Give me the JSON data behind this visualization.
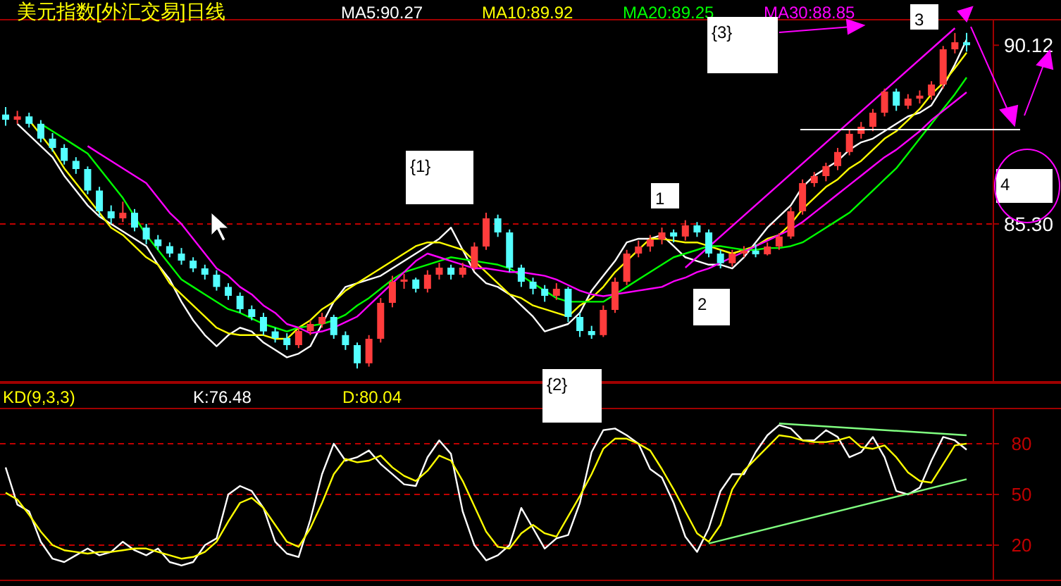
{
  "chart_data": [
    {
      "type": "candlestick",
      "title": "美元指数[外汇交易]日线",
      "tick_labels": "y",
      "ylim": [
        81.08,
        90.77
      ],
      "yticks": [
        {
          "value": 85.3,
          "label": "85.30"
        },
        {
          "value": 90.12,
          "label": "90.12"
        }
      ],
      "categories": [
        null,
        null,
        null,
        null,
        null,
        null,
        null,
        null,
        null,
        null,
        null,
        null,
        null,
        null,
        null,
        null,
        null,
        null,
        null,
        null,
        null,
        null,
        null,
        null,
        null,
        null,
        null,
        null,
        null,
        null,
        null,
        null,
        null,
        null,
        null,
        null,
        null,
        null,
        null,
        null,
        null,
        null,
        null,
        null,
        null,
        null,
        null,
        null,
        null,
        null,
        null,
        null,
        null,
        null,
        null,
        null,
        null,
        null,
        null,
        null,
        null,
        null,
        null,
        null,
        null,
        null,
        null,
        null,
        null,
        null,
        null,
        null,
        null,
        null,
        null,
        null,
        null,
        null,
        null,
        null,
        null,
        null,
        null
      ],
      "ohlc": [
        [
          88.25,
          88.45,
          87.95,
          88.11
        ],
        [
          88.11,
          88.35,
          88.0,
          88.2
        ],
        [
          88.2,
          88.3,
          87.9,
          88.0
        ],
        [
          88.0,
          88.1,
          87.5,
          87.6
        ],
        [
          87.6,
          87.75,
          87.25,
          87.35
        ],
        [
          87.35,
          87.45,
          86.9,
          87.0
        ],
        [
          87.0,
          87.1,
          86.65,
          86.78
        ],
        [
          86.78,
          86.85,
          86.1,
          86.2
        ],
        [
          86.2,
          86.3,
          85.5,
          85.64
        ],
        [
          85.64,
          85.8,
          85.3,
          85.45
        ],
        [
          85.45,
          85.9,
          85.35,
          85.6
        ],
        [
          85.6,
          85.7,
          85.1,
          85.2
        ],
        [
          85.2,
          85.3,
          84.75,
          84.88
        ],
        [
          84.88,
          85.0,
          84.6,
          84.7
        ],
        [
          84.7,
          84.8,
          84.4,
          84.5
        ],
        [
          84.5,
          84.65,
          84.2,
          84.31
        ],
        [
          84.31,
          84.4,
          84.0,
          84.1
        ],
        [
          84.1,
          84.2,
          83.8,
          83.93
        ],
        [
          83.93,
          84.05,
          83.5,
          83.6
        ],
        [
          83.6,
          83.7,
          83.25,
          83.36
        ],
        [
          83.36,
          83.45,
          82.9,
          83.0
        ],
        [
          83.0,
          83.1,
          82.7,
          82.79
        ],
        [
          82.79,
          82.9,
          82.3,
          82.4
        ],
        [
          82.4,
          82.5,
          82.1,
          82.22
        ],
        [
          82.22,
          82.35,
          81.9,
          82.03
        ],
        [
          82.03,
          82.5,
          81.95,
          82.41
        ],
        [
          82.41,
          82.7,
          82.3,
          82.6
        ],
        [
          82.6,
          82.9,
          82.5,
          82.79
        ],
        [
          82.79,
          82.85,
          82.2,
          82.3
        ],
        [
          82.3,
          82.4,
          81.9,
          82.03
        ],
        [
          82.03,
          82.1,
          81.4,
          81.54
        ],
        [
          81.54,
          82.3,
          81.45,
          82.2
        ],
        [
          82.2,
          83.3,
          82.1,
          83.17
        ],
        [
          83.17,
          83.9,
          83.05,
          83.74
        ],
        [
          83.74,
          83.95,
          83.55,
          83.8
        ],
        [
          83.8,
          83.85,
          83.45,
          83.55
        ],
        [
          83.55,
          84.05,
          83.45,
          83.93
        ],
        [
          83.93,
          84.25,
          83.8,
          84.12
        ],
        [
          84.12,
          84.2,
          83.8,
          83.93
        ],
        [
          83.93,
          84.25,
          83.85,
          84.12
        ],
        [
          84.12,
          84.8,
          84.05,
          84.69
        ],
        [
          84.69,
          85.6,
          84.6,
          85.45
        ],
        [
          85.45,
          85.55,
          84.95,
          85.07
        ],
        [
          85.07,
          85.15,
          84.0,
          84.12
        ],
        [
          84.12,
          84.2,
          83.6,
          83.74
        ],
        [
          83.74,
          83.85,
          83.4,
          83.55
        ],
        [
          83.55,
          83.65,
          83.2,
          83.36
        ],
        [
          83.36,
          83.7,
          83.25,
          83.55
        ],
        [
          83.55,
          83.6,
          82.65,
          82.79
        ],
        [
          82.79,
          82.9,
          82.25,
          82.41
        ],
        [
          82.41,
          82.55,
          82.2,
          82.3
        ],
        [
          82.3,
          83.1,
          82.25,
          82.98
        ],
        [
          82.98,
          83.85,
          82.9,
          83.74
        ],
        [
          83.74,
          84.6,
          83.65,
          84.5
        ],
        [
          84.5,
          84.85,
          84.4,
          84.69
        ],
        [
          84.69,
          85.0,
          84.55,
          84.88
        ],
        [
          84.88,
          85.2,
          84.75,
          85.07
        ],
        [
          85.07,
          85.15,
          84.8,
          84.96
        ],
        [
          84.96,
          85.4,
          84.85,
          85.26
        ],
        [
          85.26,
          85.35,
          84.95,
          85.07
        ],
        [
          85.07,
          85.15,
          84.4,
          84.5
        ],
        [
          84.5,
          84.6,
          84.1,
          84.24
        ],
        [
          84.24,
          84.6,
          84.15,
          84.5
        ],
        [
          84.5,
          84.7,
          84.4,
          84.58
        ],
        [
          84.58,
          84.75,
          84.4,
          84.48
        ],
        [
          84.48,
          84.8,
          84.45,
          84.69
        ],
        [
          84.69,
          85.05,
          84.6,
          84.96
        ],
        [
          84.96,
          85.75,
          84.9,
          85.64
        ],
        [
          85.64,
          86.5,
          85.55,
          86.4
        ],
        [
          86.4,
          86.7,
          86.3,
          86.59
        ],
        [
          86.59,
          86.95,
          86.45,
          86.86
        ],
        [
          86.86,
          87.35,
          86.75,
          87.24
        ],
        [
          87.24,
          87.85,
          87.15,
          87.73
        ],
        [
          87.73,
          88.05,
          87.6,
          87.92
        ],
        [
          87.92,
          88.4,
          87.8,
          88.3
        ],
        [
          88.3,
          88.95,
          88.2,
          88.87
        ],
        [
          88.87,
          88.95,
          88.35,
          88.49
        ],
        [
          88.49,
          88.8,
          88.4,
          88.68
        ],
        [
          88.68,
          88.9,
          88.55,
          88.76
        ],
        [
          88.76,
          89.15,
          88.65,
          89.06
        ],
        [
          89.06,
          90.1,
          88.95,
          90.01
        ],
        [
          90.01,
          90.45,
          89.9,
          90.2
        ],
        [
          90.2,
          90.45,
          89.95,
          90.12
        ]
      ],
      "series": [
        {
          "type": "line",
          "name": "MA5:90.27",
          "color": "#ffffff",
          "values": [
            null,
            88.0,
            87.7,
            87.4,
            87.1,
            86.6,
            86.2,
            85.8,
            85.5,
            85.3,
            85.1,
            84.9,
            84.7,
            84.2,
            83.8,
            83.2,
            82.7,
            82.3,
            82.0,
            82.3,
            82.5,
            82.4,
            82.1,
            81.9,
            81.7,
            81.8,
            82.0,
            82.6,
            83.2,
            83.6,
            83.7,
            83.8,
            83.9,
            84.1,
            84.3,
            84.5,
            84.7,
            84.9,
            85.2,
            84.6,
            84.0,
            83.7,
            83.6,
            83.4,
            83.1,
            82.8,
            82.4,
            82.5,
            82.6,
            82.9,
            83.5,
            83.9,
            84.3,
            84.8,
            84.9,
            84.9,
            85.0,
            84.7,
            84.4,
            84.3,
            84.2,
            84.2,
            84.1,
            84.4,
            84.8,
            85.2,
            85.5,
            85.8,
            86.3,
            86.6,
            86.8,
            87.0,
            87.3,
            87.5,
            87.6,
            87.8,
            88.0,
            88.2,
            88.3,
            88.5,
            89.0,
            89.6,
            90.27
          ]
        },
        {
          "type": "line",
          "name": "MA10:89.92",
          "color": "#ffff00",
          "values": [
            null,
            null,
            88.1,
            87.7,
            87.3,
            86.8,
            86.4,
            86.0,
            85.6,
            85.2,
            85.0,
            84.7,
            84.4,
            84.2,
            83.7,
            83.4,
            83.1,
            82.8,
            82.5,
            82.35,
            82.3,
            82.3,
            82.3,
            82.2,
            82.2,
            82.5,
            82.7,
            83.0,
            83.2,
            83.5,
            83.7,
            83.9,
            84.1,
            84.3,
            84.5,
            84.7,
            84.8,
            84.8,
            84.7,
            84.6,
            84.3,
            84.0,
            83.7,
            83.4,
            83.3,
            83.1,
            83.0,
            82.9,
            82.8,
            83.1,
            83.3,
            83.6,
            84.0,
            84.3,
            84.6,
            84.9,
            84.9,
            84.85,
            84.8,
            84.8,
            84.7,
            84.6,
            84.5,
            84.6,
            84.7,
            84.9,
            85.0,
            85.3,
            85.7,
            86.0,
            86.3,
            86.5,
            86.8,
            87.0,
            87.3,
            87.6,
            87.8,
            88.1,
            88.4,
            88.8,
            89.1,
            89.5,
            89.92
          ]
        },
        {
          "type": "line",
          "name": "MA20:89.25",
          "color": "#00ff00",
          "values": [
            null,
            null,
            null,
            88.0,
            87.8,
            87.6,
            87.4,
            87.2,
            86.8,
            86.4,
            86.0,
            85.5,
            85.0,
            84.6,
            84.2,
            83.8,
            83.6,
            83.4,
            83.2,
            83.0,
            82.9,
            82.75,
            82.6,
            82.5,
            82.4,
            82.5,
            82.55,
            82.6,
            82.7,
            82.85,
            83.1,
            83.3,
            83.55,
            83.8,
            84.0,
            84.1,
            84.2,
            84.3,
            84.4,
            84.35,
            84.3,
            84.25,
            84.2,
            84.1,
            83.9,
            83.7,
            83.5,
            83.3,
            83.2,
            83.2,
            83.2,
            83.2,
            83.4,
            83.6,
            83.8,
            84.0,
            84.2,
            84.4,
            84.5,
            84.6,
            84.7,
            84.7,
            84.65,
            84.6,
            84.6,
            84.65,
            84.65,
            84.7,
            84.8,
            85.0,
            85.2,
            85.4,
            85.6,
            85.9,
            86.2,
            86.5,
            86.8,
            87.2,
            87.6,
            88.0,
            88.4,
            88.8,
            89.25
          ]
        },
        {
          "type": "line",
          "name": "MA30:88.85",
          "color": "#ff00ff",
          "values": [
            null,
            null,
            null,
            null,
            null,
            null,
            null,
            87.4,
            87.2,
            87.0,
            86.8,
            86.6,
            86.4,
            86.0,
            85.6,
            85.3,
            84.9,
            84.5,
            84.1,
            83.9,
            83.6,
            83.4,
            83.1,
            82.9,
            82.6,
            82.5,
            82.35,
            82.4,
            82.5,
            82.65,
            82.8,
            83.1,
            83.4,
            83.7,
            84.0,
            84.3,
            84.5,
            84.4,
            84.3,
            84.2,
            84.1,
            84.1,
            84.05,
            84.0,
            84.0,
            83.95,
            83.9,
            83.8,
            83.65,
            83.5,
            83.4,
            83.35,
            83.4,
            83.45,
            83.5,
            83.55,
            83.6,
            83.75,
            83.85,
            84.0,
            84.1,
            84.25,
            84.4,
            84.55,
            84.7,
            84.85,
            85.0,
            85.15,
            85.35,
            85.6,
            85.85,
            86.1,
            86.35,
            86.6,
            86.85,
            87.1,
            87.3,
            87.55,
            87.8,
            88.1,
            88.35,
            88.6,
            88.85
          ]
        },
        {
          "type": "line",
          "color": "#ff00ff",
          "values": [
            null,
            null,
            null,
            null,
            null,
            null,
            null,
            null,
            null,
            null,
            null,
            null,
            null,
            null,
            null,
            null,
            null,
            null,
            null,
            null,
            null,
            null,
            null,
            null,
            null,
            null,
            null,
            null,
            null,
            null,
            null,
            null,
            null,
            null,
            null,
            null,
            null,
            null,
            null,
            null,
            null,
            null,
            null,
            null,
            null,
            null,
            null,
            null,
            null,
            null,
            null,
            null,
            null,
            null,
            null,
            null,
            null,
            null,
            84.12,
            null,
            null,
            null,
            null,
            null,
            null,
            null,
            null,
            null,
            null,
            null,
            null,
            null,
            null,
            null,
            null,
            null,
            null,
            null,
            null,
            null,
            null,
            90.58,
            null
          ]
        }
      ],
      "ref_lines": [
        {
          "axis": "y",
          "value": 85.3,
          "color": "#c00000",
          "line_style": "dashed"
        }
      ],
      "annotations": [
        "{1}",
        "{2}",
        "{3}",
        "1",
        "2",
        "3",
        "4"
      ]
    },
    {
      "type": "line",
      "title": "KD(9,3,3)",
      "tick_labels": "y",
      "grid": "y",
      "ylim": [
        0,
        100
      ],
      "yticks": [
        20,
        50,
        80
      ],
      "categories": [
        null,
        null,
        null,
        null,
        null,
        null,
        null,
        null,
        null,
        null,
        null,
        null,
        null,
        null,
        null,
        null,
        null,
        null,
        null,
        null,
        null,
        null,
        null,
        null,
        null,
        null,
        null,
        null,
        null,
        null,
        null,
        null,
        null,
        null,
        null,
        null,
        null,
        null,
        null,
        null,
        null,
        null,
        null,
        null,
        null,
        null,
        null,
        null,
        null,
        null,
        null,
        null,
        null,
        null,
        null,
        null,
        null,
        null,
        null,
        null,
        null,
        null,
        null,
        null,
        null,
        null,
        null,
        null,
        null,
        null,
        null,
        null,
        null,
        null,
        null,
        null,
        null,
        null,
        null,
        null,
        null,
        null,
        null
      ],
      "series": [
        {
          "name": "K:76.48",
          "color": "#ffffff",
          "values": [
            66,
            44,
            40,
            22,
            12,
            10,
            14,
            18,
            14,
            16,
            22,
            17,
            14,
            18,
            10,
            8,
            10,
            20,
            24,
            50,
            55,
            52,
            42,
            22,
            15,
            13,
            35,
            62,
            80,
            70,
            72,
            76,
            68,
            62,
            56,
            55,
            72,
            82,
            74,
            40,
            20,
            11,
            14,
            20,
            42,
            30,
            18,
            24,
            26,
            45,
            75,
            88,
            89,
            85,
            80,
            65,
            60,
            45,
            25,
            16,
            30,
            52,
            62,
            62,
            75,
            85,
            91,
            89,
            82,
            82,
            88,
            84,
            72,
            75,
            84,
            72,
            52,
            50,
            54,
            70,
            84,
            82,
            76.48
          ]
        },
        {
          "name": "D:80.04",
          "color": "#ffff00",
          "values": [
            51,
            47,
            38,
            28,
            20,
            17,
            16,
            15,
            16,
            16,
            17,
            18,
            18,
            16,
            14,
            12,
            13,
            16,
            22,
            34,
            45,
            48,
            42,
            32,
            22,
            19,
            30,
            45,
            62,
            71,
            69,
            70,
            73,
            66,
            61,
            58,
            64,
            73,
            70,
            58,
            43,
            28,
            19,
            18,
            27,
            32,
            27,
            25,
            37,
            49,
            62,
            77,
            83,
            83,
            80,
            76,
            65,
            53,
            40,
            27,
            22,
            32,
            53,
            64,
            71,
            78,
            85,
            84,
            82,
            81,
            81,
            82,
            84,
            78,
            77,
            79,
            72,
            63,
            58,
            57,
            68,
            79,
            80.04
          ]
        },
        {
          "color": "#80ff80",
          "values": [
            null,
            null,
            null,
            null,
            null,
            null,
            null,
            null,
            null,
            null,
            null,
            null,
            null,
            null,
            null,
            null,
            null,
            null,
            null,
            null,
            null,
            null,
            null,
            null,
            null,
            null,
            null,
            null,
            null,
            null,
            null,
            null,
            null,
            null,
            null,
            null,
            null,
            null,
            null,
            null,
            null,
            null,
            null,
            null,
            null,
            null,
            null,
            null,
            null,
            null,
            null,
            null,
            null,
            null,
            null,
            null,
            null,
            null,
            null,
            null,
            null,
            null,
            null,
            null,
            null,
            null,
            92,
            null,
            null,
            null,
            null,
            null,
            null,
            null,
            null,
            null,
            null,
            null,
            null,
            null,
            null,
            null,
            85
          ]
        },
        {
          "color": "#80ff80",
          "values": [
            null,
            null,
            null,
            null,
            null,
            null,
            null,
            null,
            null,
            null,
            null,
            null,
            null,
            null,
            null,
            null,
            null,
            null,
            null,
            null,
            null,
            null,
            null,
            null,
            null,
            null,
            null,
            null,
            null,
            null,
            null,
            null,
            null,
            null,
            null,
            null,
            null,
            null,
            null,
            null,
            null,
            null,
            null,
            null,
            null,
            null,
            null,
            null,
            null,
            null,
            null,
            null,
            null,
            null,
            null,
            null,
            null,
            null,
            null,
            null,
            21,
            null,
            null,
            null,
            null,
            null,
            null,
            null,
            null,
            null,
            null,
            null,
            null,
            null,
            null,
            null,
            null,
            null,
            null,
            null,
            null,
            null,
            59
          ]
        }
      ]
    }
  ]
}
